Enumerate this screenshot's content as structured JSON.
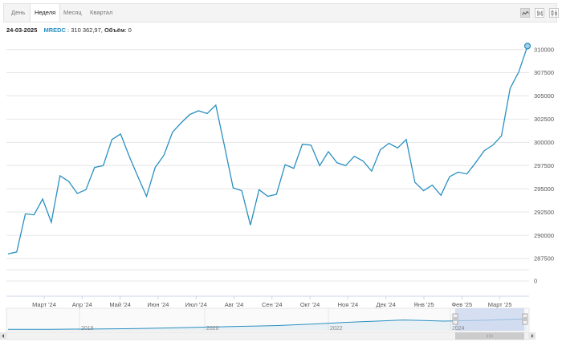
{
  "toolbar": {
    "tabs": [
      {
        "label": "День",
        "active": false
      },
      {
        "label": "Неделя",
        "active": true
      },
      {
        "label": "Месяц",
        "active": false
      },
      {
        "label": "Квартал",
        "active": false
      }
    ],
    "chart_type_buttons": [
      {
        "icon": "line-chart-icon",
        "active": true
      },
      {
        "icon": "bar-chart-icon",
        "active": false
      },
      {
        "icon": "candlestick-chart-icon",
        "active": false
      }
    ]
  },
  "info": {
    "date": "24-03-2025",
    "series_name": "MREDC",
    "separator": " : ",
    "value_text": "310 362,97,",
    "volume_label": "Объём",
    "volume_value": ": 0"
  },
  "colors": {
    "series": "#2a8fc1",
    "grid": "#e6e6e6",
    "axis_text": "#555555",
    "navigator_mask": "#c6d3ee"
  },
  "chart_data": {
    "type": "line",
    "series": [
      {
        "name": "MREDC",
        "values": [
          288000,
          288200,
          292300,
          292200,
          293900,
          291400,
          296400,
          295800,
          294500,
          294900,
          297300,
          297500,
          300300,
          300900,
          298500,
          296300,
          294200,
          297300,
          298600,
          301100,
          302100,
          303000,
          303400,
          303100,
          304000,
          299600,
          295100,
          294800,
          291100,
          294900,
          294200,
          294400,
          297600,
          297200,
          299800,
          299700,
          297500,
          299000,
          297800,
          297500,
          298500,
          298000,
          296900,
          299200,
          299900,
          299400,
          300300,
          295700,
          294800,
          295400,
          294300,
          296300,
          296800,
          296600,
          297800,
          299100,
          299700,
          300700,
          305800,
          307600,
          310363
        ]
      }
    ],
    "x_tick_labels": [
      "Март '24",
      "Апр '24",
      "Май '24",
      "Июн '24",
      "Июл '24",
      "Авг '24",
      "Сен '24",
      "Окт '24",
      "Ноя '24",
      "Дек '24",
      "Янв '25",
      "Фев '25",
      "Март '25"
    ],
    "y_tick_labels": [
      "287500",
      "290000",
      "292500",
      "295000",
      "297500",
      "300000",
      "302500",
      "305000",
      "307500",
      "310000"
    ],
    "ylim": [
      287500,
      311000
    ],
    "volume": {
      "y_tick_labels": [
        "0"
      ],
      "values": [
        0
      ]
    },
    "navigator": {
      "x_tick_labels": [
        "2018",
        "2020",
        "2022",
        "2024"
      ],
      "values": [
        0.05,
        0.05,
        0.06,
        0.07,
        0.08,
        0.1,
        0.12,
        0.15,
        0.19,
        0.24,
        0.27,
        0.32,
        0.36,
        0.4,
        0.48,
        0.56,
        0.66,
        0.74,
        0.82,
        0.9,
        0.85,
        0.8,
        0.84,
        0.88,
        0.95,
        1.0
      ]
    },
    "grid": true,
    "legend": "none"
  }
}
